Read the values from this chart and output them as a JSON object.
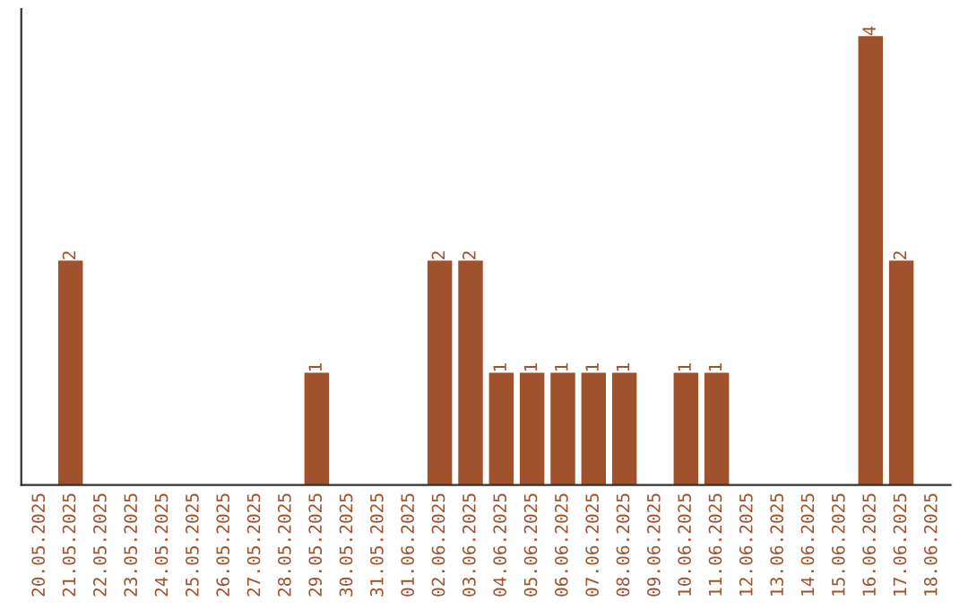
{
  "chart_data": {
    "type": "bar",
    "categories": [
      "20.05.2025",
      "21.05.2025",
      "22.05.2025",
      "23.05.2025",
      "24.05.2025",
      "25.05.2025",
      "26.05.2025",
      "27.05.2025",
      "28.05.2025",
      "29.05.2025",
      "30.05.2025",
      "31.05.2025",
      "01.06.2025",
      "02.06.2025",
      "03.06.2025",
      "04.06.2025",
      "05.06.2025",
      "06.06.2025",
      "07.06.2025",
      "08.06.2025",
      "09.06.2025",
      "10.06.2025",
      "11.06.2025",
      "12.06.2025",
      "13.06.2025",
      "14.06.2025",
      "15.06.2025",
      "16.06.2025",
      "17.06.2025",
      "18.06.2025"
    ],
    "values": [
      0,
      2,
      0,
      0,
      0,
      0,
      0,
      0,
      0,
      1,
      0,
      0,
      0,
      2,
      2,
      1,
      1,
      1,
      1,
      1,
      0,
      1,
      1,
      0,
      0,
      0,
      0,
      4,
      2,
      0
    ],
    "value_labels": [
      null,
      "2",
      null,
      null,
      null,
      null,
      null,
      null,
      null,
      "1",
      null,
      null,
      null,
      "2",
      "2",
      "1",
      "1",
      "1",
      "1",
      "1",
      null,
      "1",
      "1",
      null,
      null,
      null,
      null,
      "4",
      "2",
      null
    ],
    "color": "#a0522d",
    "tick_labels": "x",
    "grid": false,
    "legend": false
  }
}
